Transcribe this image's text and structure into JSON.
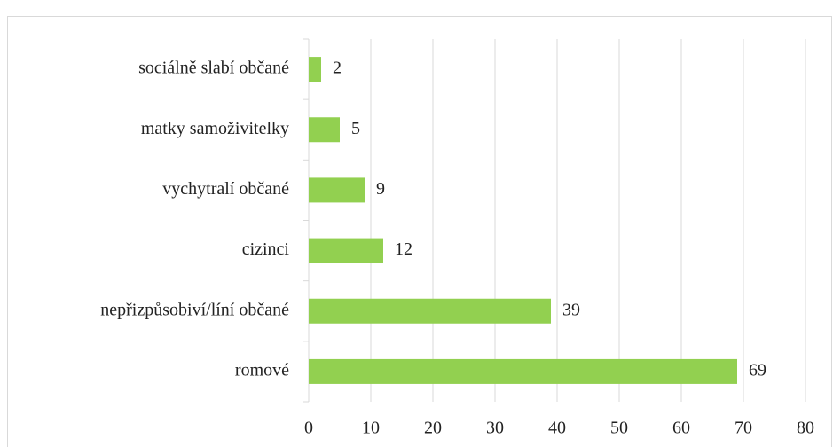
{
  "chart_data": {
    "type": "bar",
    "orientation": "horizontal",
    "categories": [
      "sociálně slabí občané",
      "matky samoživitelky",
      "vychytralí občané",
      "cizinci",
      "nepřizpůsobiví/líní občané",
      "romové"
    ],
    "values": [
      2,
      5,
      9,
      12,
      39,
      69
    ],
    "color": "#92d050",
    "xlim": [
      0,
      80
    ],
    "xticks": [
      0,
      10,
      20,
      30,
      40,
      50,
      60,
      70,
      80
    ],
    "grid": true
  }
}
